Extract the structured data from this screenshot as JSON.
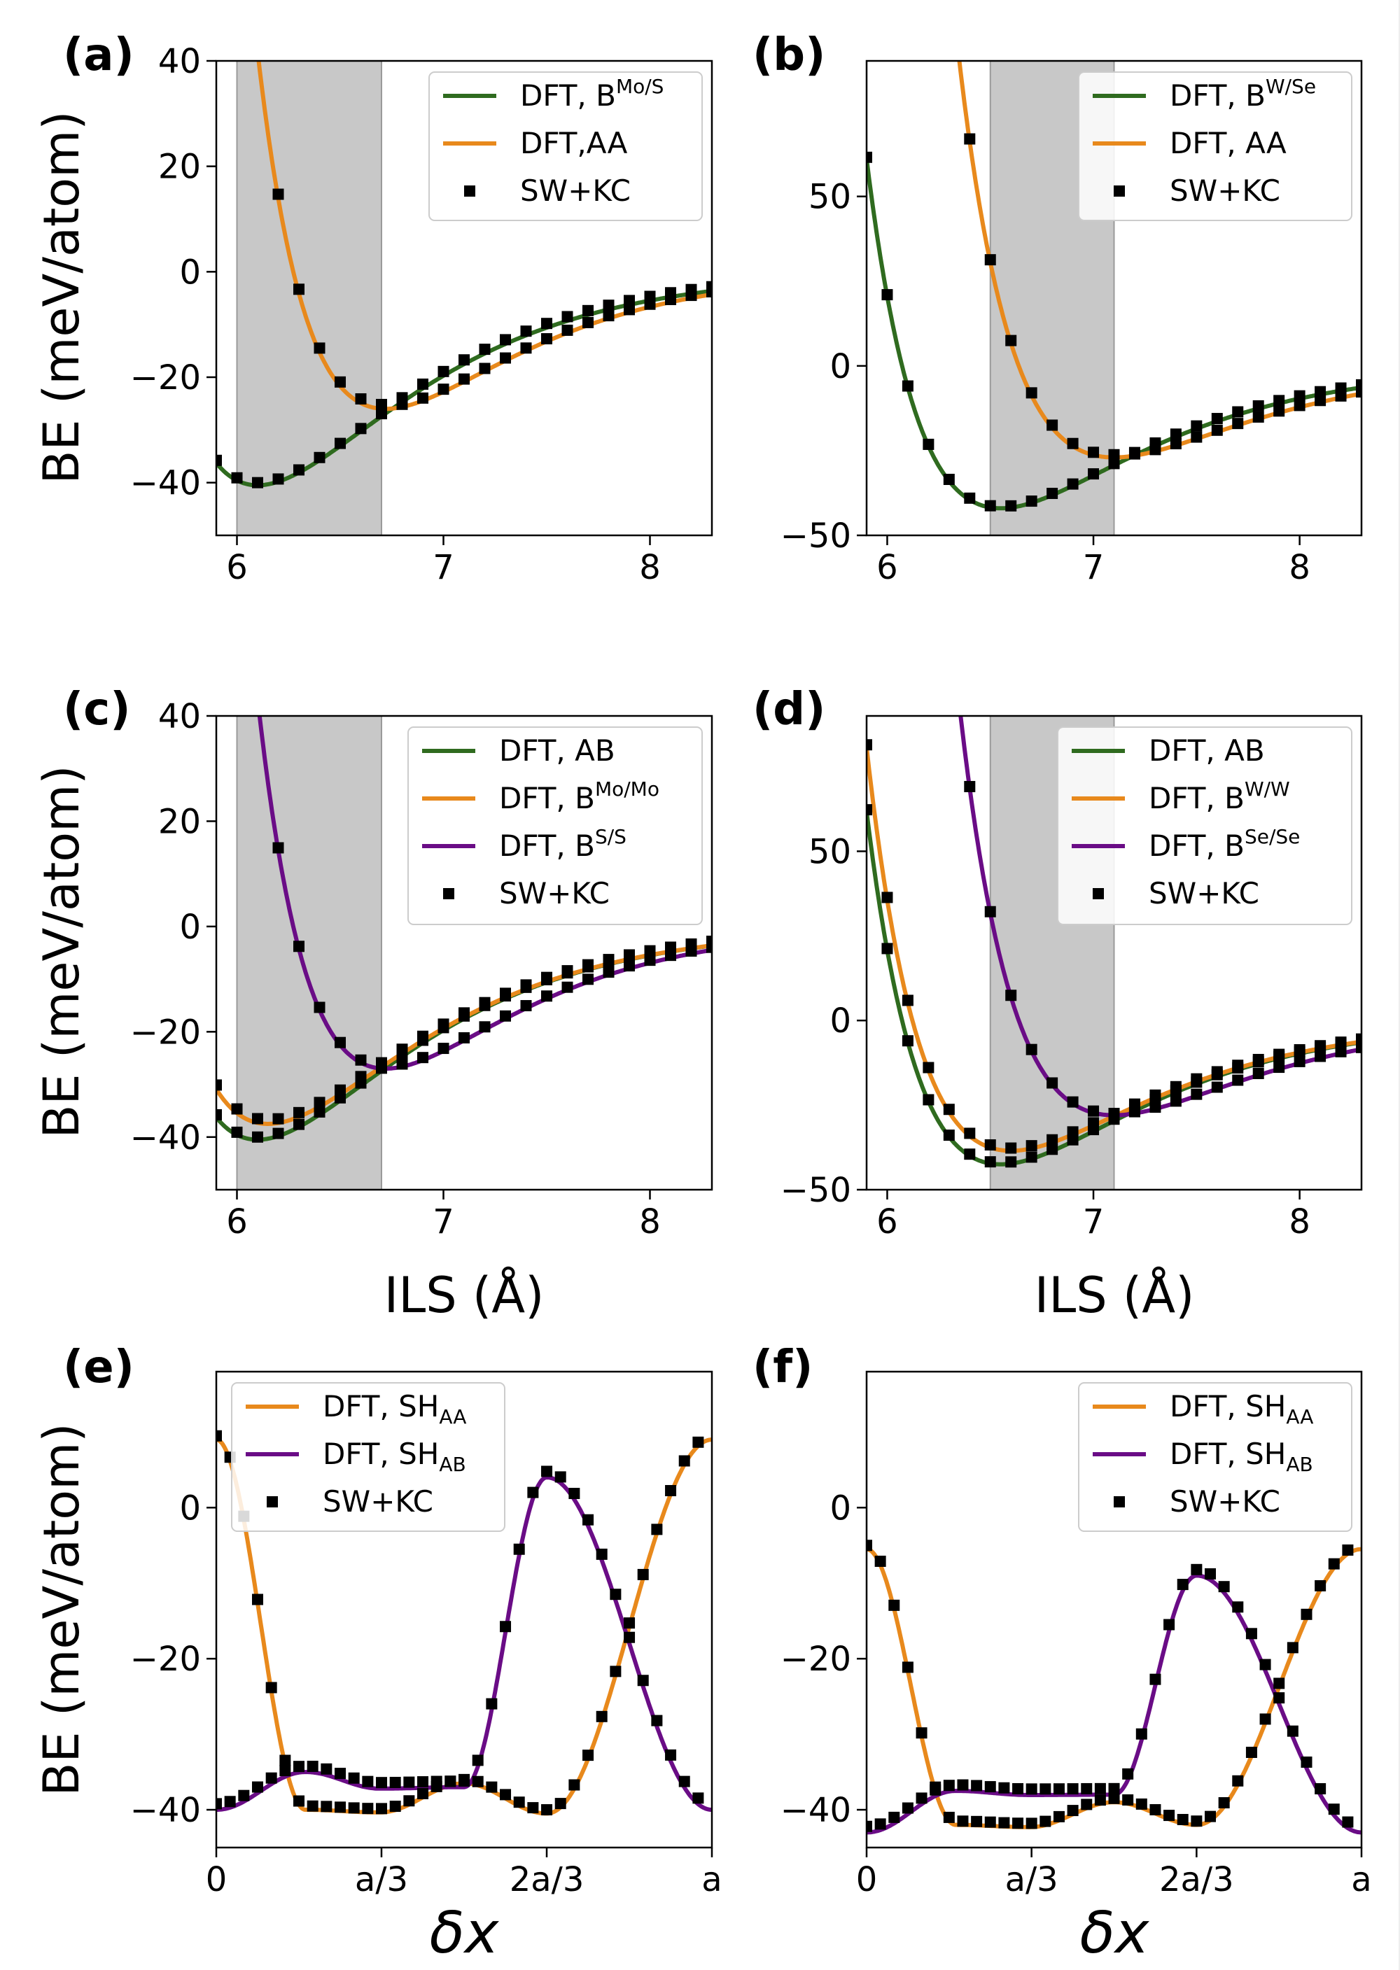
{
  "figure": {
    "ylabel": "BE (meV/atom)",
    "xlabel_ils": "ILS (Å)",
    "xlabel_dx": "δx"
  },
  "colors": {
    "green": "#2f6b1f",
    "orange": "#e8891c",
    "purple": "#6a0c86",
    "marker": "#000000",
    "shade": "#c8c8c8"
  },
  "chart_data": [
    {
      "panel": "(a)",
      "type": "line",
      "xlim": [
        5.9,
        8.3
      ],
      "ylim": [
        -50,
        40
      ],
      "xticks": [
        6,
        7,
        8
      ],
      "xtick_labels": [
        "6",
        "7",
        "8"
      ],
      "yticks": [
        -40,
        -20,
        0,
        20,
        40
      ],
      "ytick_labels": [
        "−40",
        "−20",
        "0",
        "20",
        "40"
      ],
      "shade": [
        6.0,
        6.7
      ],
      "legend_loc": "top-right",
      "series": [
        {
          "name": "DFT, B",
          "sup": "Mo/S",
          "color": "green",
          "kind": "line",
          "model": "morse",
          "E": -40.5,
          "r0": 6.1,
          "a": 1.4
        },
        {
          "name": "DFT,AA",
          "color": "orange",
          "kind": "line",
          "model": "morse",
          "E": -26.0,
          "r0": 6.72,
          "a": 1.55
        },
        {
          "name": "SW+KC",
          "kind": "markers",
          "step": 0.1,
          "start": 5.9,
          "follow": "min"
        }
      ]
    },
    {
      "panel": "(b)",
      "type": "line",
      "xlim": [
        5.9,
        8.3
      ],
      "ylim": [
        -50,
        90
      ],
      "xticks": [
        6,
        7,
        8
      ],
      "xtick_labels": [
        "6",
        "7",
        "8"
      ],
      "yticks": [
        -50,
        0,
        50
      ],
      "ytick_labels": [
        "−50",
        "0",
        "50"
      ],
      "shade": [
        6.5,
        7.1
      ],
      "legend_loc": "top-right",
      "series": [
        {
          "name": "DFT, B",
          "sup": "W/Se",
          "color": "green",
          "kind": "line",
          "model": "morse",
          "E": -42.0,
          "r0": 6.55,
          "a": 1.45
        },
        {
          "name": "DFT, AA",
          "color": "orange",
          "kind": "line",
          "model": "morse",
          "E": -27.0,
          "r0": 7.1,
          "a": 1.5
        },
        {
          "name": "SW+KC",
          "kind": "markers",
          "step": 0.1,
          "start": 5.9,
          "follow": "min"
        }
      ]
    },
    {
      "panel": "(c)",
      "type": "line",
      "xlim": [
        5.9,
        8.3
      ],
      "ylim": [
        -50,
        40
      ],
      "xticks": [
        6,
        7,
        8
      ],
      "xtick_labels": [
        "6",
        "7",
        "8"
      ],
      "yticks": [
        -40,
        -20,
        0,
        20,
        40
      ],
      "ytick_labels": [
        "−40",
        "−20",
        "0",
        "20",
        "40"
      ],
      "shade": [
        6.0,
        6.7
      ],
      "legend_loc": "top-right",
      "series": [
        {
          "name": "DFT, AB",
          "color": "green",
          "kind": "line",
          "model": "morse",
          "E": -40.5,
          "r0": 6.1,
          "a": 1.4
        },
        {
          "name": "DFT, B",
          "sup": "Mo/Mo",
          "color": "orange",
          "kind": "line",
          "model": "morse",
          "E": -37.5,
          "r0": 6.15,
          "a": 1.4
        },
        {
          "name": "DFT, B",
          "sup": "S/S",
          "color": "purple",
          "kind": "line",
          "model": "morse",
          "E": -27.0,
          "r0": 6.72,
          "a": 1.55
        },
        {
          "name": "SW+KC",
          "kind": "markers",
          "step": 0.1,
          "start": 5.9,
          "follow": "all"
        }
      ]
    },
    {
      "panel": "(d)",
      "type": "line",
      "xlim": [
        5.9,
        8.3
      ],
      "ylim": [
        -50,
        90
      ],
      "xticks": [
        6,
        7,
        8
      ],
      "xtick_labels": [
        "6",
        "7",
        "8"
      ],
      "yticks": [
        -50,
        0,
        50
      ],
      "ytick_labels": [
        "−50",
        "0",
        "50"
      ],
      "shade": [
        6.5,
        7.1
      ],
      "legend_loc": "top-right",
      "series": [
        {
          "name": "DFT, AB",
          "color": "green",
          "kind": "line",
          "model": "morse",
          "E": -42.5,
          "r0": 6.55,
          "a": 1.45
        },
        {
          "name": "DFT, B",
          "sup": "W/W",
          "color": "orange",
          "kind": "line",
          "model": "morse",
          "E": -38.5,
          "r0": 6.6,
          "a": 1.45
        },
        {
          "name": "DFT, B",
          "sup": "Se/Se",
          "color": "purple",
          "kind": "line",
          "model": "morse",
          "E": -28.0,
          "r0": 7.1,
          "a": 1.5
        },
        {
          "name": "SW+KC",
          "kind": "markers",
          "step": 0.1,
          "start": 5.9,
          "follow": "all"
        }
      ]
    },
    {
      "panel": "(e)",
      "type": "line",
      "xlim": [
        0,
        1
      ],
      "ylim": [
        -45,
        18
      ],
      "xticks": [
        0,
        0.3333,
        0.6667,
        1
      ],
      "xtick_labels": [
        "0",
        "a/3",
        "2a/3",
        "a"
      ],
      "yticks": [
        -40,
        -20,
        0
      ],
      "ytick_labels": [
        "−40",
        "−20",
        "0"
      ],
      "legend_loc": "top-left",
      "series": [
        {
          "name": "DFT, SH",
          "sub": "AA",
          "color": "orange",
          "kind": "line",
          "model": "cos",
          "ends": 9.0,
          "low1": -40.0,
          "mid": -36.5,
          "low2": -40.5
        },
        {
          "name": "DFT, SH",
          "sub": "AB",
          "color": "purple",
          "kind": "line",
          "model": "cos",
          "ends": -40.0,
          "low1": -35.0,
          "mid": -37.0,
          "low2": 4.0
        },
        {
          "name": "SW+KC",
          "kind": "markers",
          "step": 0.02778,
          "start": 0,
          "follow": "all"
        }
      ]
    },
    {
      "panel": "(f)",
      "type": "line",
      "xlim": [
        0,
        1
      ],
      "ylim": [
        -45,
        18
      ],
      "xticks": [
        0,
        0.3333,
        0.6667,
        1
      ],
      "xtick_labels": [
        "0",
        "a/3",
        "2a/3",
        "a"
      ],
      "yticks": [
        -40,
        -20,
        0
      ],
      "ytick_labels": [
        "−40",
        "−20",
        "0"
      ],
      "legend_loc": "top-right",
      "series": [
        {
          "name": "DFT, SH",
          "sub": "AA",
          "color": "orange",
          "kind": "line",
          "model": "cos",
          "ends": -5.5,
          "low1": -42.0,
          "mid": -39.0,
          "low2": -42.0
        },
        {
          "name": "DFT, SH",
          "sub": "AB",
          "color": "purple",
          "kind": "line",
          "model": "cos",
          "ends": -43.0,
          "low1": -37.5,
          "mid": -38.0,
          "low2": -9.0
        },
        {
          "name": "SW+KC",
          "kind": "markers",
          "step": 0.02778,
          "start": 0,
          "follow": "all"
        }
      ]
    }
  ]
}
